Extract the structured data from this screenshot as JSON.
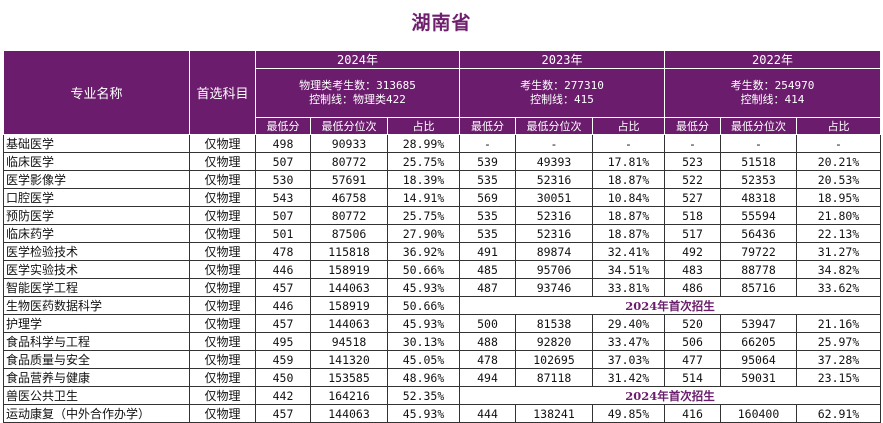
{
  "title": "湖南省",
  "header": {
    "col_major": "专业名称",
    "col_subject": "首选科目",
    "years": [
      {
        "year": "2024年",
        "info_line1": "物理类考生数：313685",
        "info_line2": "控制线：物理类422"
      },
      {
        "year": "2023年",
        "info_line1": "考生数：277310",
        "info_line2": "控制线：415"
      },
      {
        "year": "2022年",
        "info_line1": "考生数：254970",
        "info_line2": "控制线：414"
      }
    ],
    "sub_labels": {
      "min_score": "最低分",
      "min_rank": "最低分位次",
      "ratio": "占比"
    }
  },
  "rows": [
    {
      "name": "基础医学",
      "subject": "仅物理",
      "y2024": [
        "498",
        "90933",
        "28.99%"
      ],
      "y2023": [
        "-",
        "-",
        "-"
      ],
      "y2022": [
        "-",
        "-",
        "-"
      ]
    },
    {
      "name": "临床医学",
      "subject": "仅物理",
      "y2024": [
        "507",
        "80772",
        "25.75%"
      ],
      "y2023": [
        "539",
        "49393",
        "17.81%"
      ],
      "y2022": [
        "523",
        "51518",
        "20.21%"
      ]
    },
    {
      "name": "医学影像学",
      "subject": "仅物理",
      "y2024": [
        "530",
        "57691",
        "18.39%"
      ],
      "y2023": [
        "535",
        "52316",
        "18.87%"
      ],
      "y2022": [
        "522",
        "52353",
        "20.53%"
      ]
    },
    {
      "name": "口腔医学",
      "subject": "仅物理",
      "y2024": [
        "543",
        "46758",
        "14.91%"
      ],
      "y2023": [
        "569",
        "30051",
        "10.84%"
      ],
      "y2022": [
        "527",
        "48318",
        "18.95%"
      ]
    },
    {
      "name": "预防医学",
      "subject": "仅物理",
      "y2024": [
        "507",
        "80772",
        "25.75%"
      ],
      "y2023": [
        "535",
        "52316",
        "18.87%"
      ],
      "y2022": [
        "518",
        "55594",
        "21.80%"
      ]
    },
    {
      "name": "临床药学",
      "subject": "仅物理",
      "y2024": [
        "501",
        "87506",
        "27.90%"
      ],
      "y2023": [
        "535",
        "52316",
        "18.87%"
      ],
      "y2022": [
        "517",
        "56436",
        "22.13%"
      ]
    },
    {
      "name": "医学检验技术",
      "subject": "仅物理",
      "y2024": [
        "478",
        "115818",
        "36.92%"
      ],
      "y2023": [
        "491",
        "89874",
        "32.41%"
      ],
      "y2022": [
        "492",
        "79722",
        "31.27%"
      ]
    },
    {
      "name": "医学实验技术",
      "subject": "仅物理",
      "y2024": [
        "446",
        "158919",
        "50.66%"
      ],
      "y2023": [
        "485",
        "95706",
        "34.51%"
      ],
      "y2022": [
        "483",
        "88778",
        "34.82%"
      ]
    },
    {
      "name": "智能医学工程",
      "subject": "仅物理",
      "y2024": [
        "457",
        "144063",
        "45.93%"
      ],
      "y2023": [
        "487",
        "93746",
        "33.81%"
      ],
      "y2022": [
        "486",
        "85716",
        "33.62%"
      ]
    },
    {
      "name": "生物医药数据科学",
      "subject": "仅物理",
      "y2024": [
        "446",
        "158919",
        "50.66%"
      ],
      "first_time": "2024年首次招生"
    },
    {
      "name": "护理学",
      "subject": "仅物理",
      "y2024": [
        "457",
        "144063",
        "45.93%"
      ],
      "y2023": [
        "500",
        "81538",
        "29.40%"
      ],
      "y2022": [
        "520",
        "53947",
        "21.16%"
      ]
    },
    {
      "name": "食品科学与工程",
      "subject": "仅物理",
      "y2024": [
        "495",
        "94518",
        "30.13%"
      ],
      "y2023": [
        "488",
        "92820",
        "33.47%"
      ],
      "y2022": [
        "506",
        "66205",
        "25.97%"
      ]
    },
    {
      "name": "食品质量与安全",
      "subject": "仅物理",
      "y2024": [
        "459",
        "141320",
        "45.05%"
      ],
      "y2023": [
        "478",
        "102695",
        "37.03%"
      ],
      "y2022": [
        "477",
        "95064",
        "37.28%"
      ]
    },
    {
      "name": "食品营养与健康",
      "subject": "仅物理",
      "y2024": [
        "450",
        "153585",
        "48.96%"
      ],
      "y2023": [
        "494",
        "87118",
        "31.42%"
      ],
      "y2022": [
        "514",
        "59031",
        "23.15%"
      ]
    },
    {
      "name": "兽医公共卫生",
      "subject": "仅物理",
      "y2024": [
        "442",
        "164216",
        "52.35%"
      ],
      "first_time": "2024年首次招生"
    },
    {
      "name": "运动康复（中外合作办学）",
      "subject": "仅物理",
      "y2024": [
        "457",
        "144063",
        "45.93%"
      ],
      "y2023": [
        "444",
        "138241",
        "49.85%"
      ],
      "y2022": [
        "416",
        "160400",
        "62.91%"
      ]
    }
  ]
}
